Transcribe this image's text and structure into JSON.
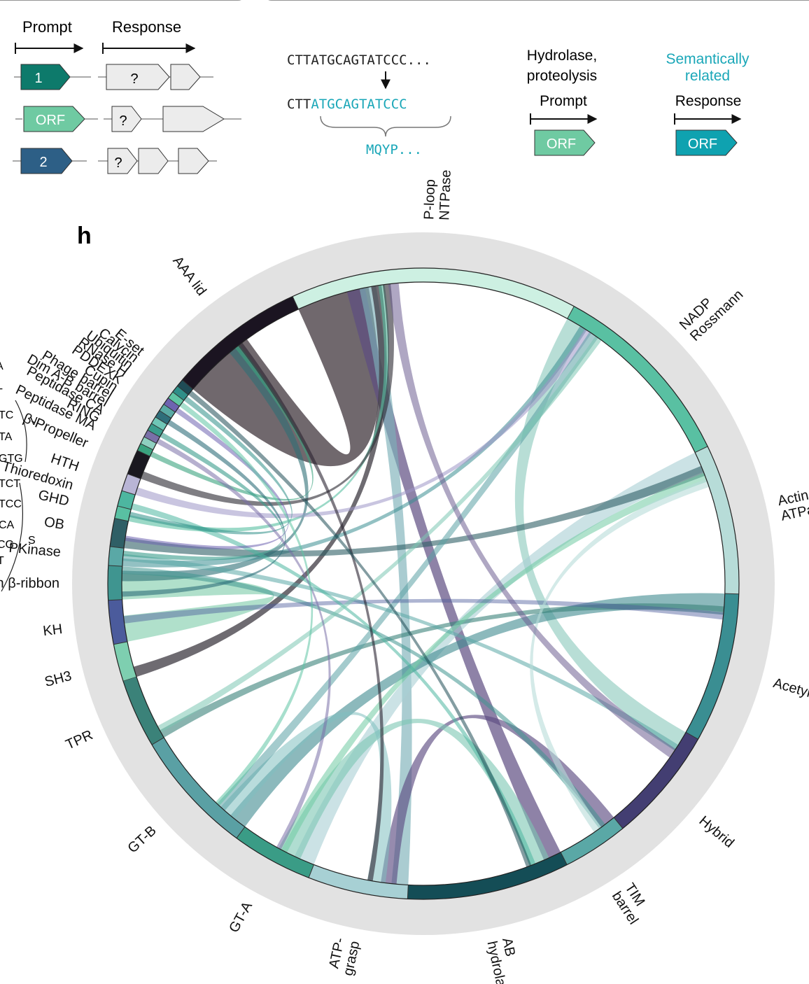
{
  "colors": {
    "teal_dark": "#0d7a6b",
    "mint": "#6fcaa2",
    "navy": "#2d5f86",
    "cyan_text": "#1aa7b8",
    "cyan_box": "#0fa2b0",
    "gene_fill": "#ececec",
    "ring": "#e2e2e2"
  },
  "panel_top_left": {
    "prompt_label": "Prompt",
    "response_label": "Response",
    "rows": [
      {
        "label": "1",
        "fill": "#0d7a6b",
        "text_color": "#ffffff",
        "response": [
          "?",
          "",
          ""
        ]
      },
      {
        "label": "ORF",
        "fill": "#6fcaa2",
        "text_color": "#ffffff",
        "response": [
          "?",
          ""
        ]
      },
      {
        "label": "2",
        "fill": "#2d5f86",
        "text_color": "#ffffff",
        "response": [
          "?",
          "",
          ""
        ]
      }
    ]
  },
  "panel_top_mid": {
    "seq_top": "CTTATGCAGTATCCC...",
    "seq_bottom_black": "CTT",
    "seq_bottom_cyan": "ATGCAGTATCCC",
    "protein": "MQYP..."
  },
  "panel_top_right": {
    "hydrolase_line1": "Hydrolase,",
    "hydrolase_line2": "proteolysis",
    "prompt_label": "Prompt",
    "prompt_orf": "ORF",
    "semantic_line1": "Semantically",
    "semantic_line2": "related",
    "response_label": "Response",
    "response_orf": "ORF"
  },
  "left_fragment": {
    "rows": [
      "A",
      "T",
      "TC",
      "TA",
      "GTG",
      "TCT",
      "TCC",
      "CA",
      "CG",
      "T"
    ],
    "bracket_v": "V",
    "bracket_s": "S"
  },
  "panel_h": {
    "letter": "h",
    "domains": [
      {
        "name": "SH3",
        "color": "#7ecfb0",
        "span": 6.0
      },
      {
        "name": "KH",
        "color": "#4b5b9c",
        "span": 7.0
      },
      {
        "name": "Zn β-ribbon",
        "color": "#3f9590",
        "span": 5.5
      },
      {
        "name": "PKinase",
        "color": "#5aa8a6",
        "span": 3.0
      },
      {
        "name": "OB",
        "color": "#2f5f66",
        "span": 4.5
      },
      {
        "name": "GHD",
        "color": "#59c0a2",
        "span": 2.0
      },
      {
        "name": "Thioredoxin",
        "color": "#4db6a0",
        "span": 2.5
      },
      {
        "name": "HTH",
        "color": "#b9b5d6",
        "span": 2.8
      },
      {
        "name": "β-Propeller",
        "color": "#1a1820",
        "span": 4.0
      },
      {
        "name": "Peptidase MA",
        "color": "#3aa37f",
        "span": 1.2
      },
      {
        "name": "RING",
        "color": "#8fd0c0",
        "span": 1.2
      },
      {
        "name": "Peptidase CA",
        "color": "#7a70a8",
        "span": 1.2
      },
      {
        "name": "Dim A-B barrel",
        "color": "#3a9c8c",
        "span": 1.2
      },
      {
        "name": "Phage barrel",
        "color": "#6fc6b6",
        "span": 1.2
      },
      {
        "name": "Cupin",
        "color": "#2e6e7a",
        "span": 1.2
      },
      {
        "name": "PDDEXK",
        "color": "#59aaa4",
        "span": 1.2
      },
      {
        "name": "RNase H",
        "color": "#6e63b0",
        "span": 1.2
      },
      {
        "name": "Ubiquitin",
        "color": "#5ec5a4",
        "span": 1.2
      },
      {
        "name": "Calycin",
        "color": "#2f8f88",
        "span": 1.2
      },
      {
        "name": "E-set",
        "color": "#1f4c56",
        "span": 1.2
      },
      {
        "name": "AAA lid",
        "color": "#1b1421",
        "span": 22.0
      },
      {
        "name": "P-loop\nNTPase",
        "color": "#cdf0e2",
        "span": 46.0
      },
      {
        "name": "NADP\nRossmann",
        "color": "#59c0a2",
        "span": 31.0
      },
      {
        "name": "Actin\nATPase",
        "color": "#b7dcd8",
        "span": 24.0
      },
      {
        "name": "Acetyltrans",
        "color": "#3a8e92",
        "span": 24.0
      },
      {
        "name": "Hybrid",
        "color": "#433e72",
        "span": 18.5
      },
      {
        "name": "TIM\nbarrel",
        "color": "#5aa8a6",
        "span": 10.5
      },
      {
        "name": "AB\nhydrolase",
        "color": "#144d56",
        "span": 26.0
      },
      {
        "name": "ATP-\ngrasp",
        "color": "#a7d0d4",
        "span": 16.0
      },
      {
        "name": "GT-A",
        "color": "#3a9c86",
        "span": 13.0
      },
      {
        "name": "GT-B",
        "color": "#5aa0a4",
        "span": 20.0
      },
      {
        "name": "TPR",
        "color": "#3b8279",
        "span": 11.0
      }
    ],
    "chords": [
      {
        "a": 20,
        "b": 21,
        "w": 14,
        "color": "#4c4248",
        "op": 0.8
      },
      {
        "a": 1,
        "b": 2,
        "w": 5,
        "color": "#8fd3b5",
        "op": 0.7
      },
      {
        "a": 21,
        "b": 27,
        "w": 3.5,
        "color": "#5e4d82",
        "op": 0.7
      },
      {
        "a": 21,
        "b": 28,
        "w": 3.2,
        "color": "#7cb0b8",
        "op": 0.65
      },
      {
        "a": 22,
        "b": 25,
        "w": 4,
        "color": "#88c8bb",
        "op": 0.6
      },
      {
        "a": 23,
        "b": 29,
        "w": 4,
        "color": "#a9cfd3",
        "op": 0.6
      },
      {
        "a": 24,
        "b": 30,
        "w": 3.5,
        "color": "#3f8a90",
        "op": 0.6
      },
      {
        "a": 26,
        "b": 28,
        "w": 3,
        "color": "#5e4d82",
        "op": 0.65
      },
      {
        "a": 27,
        "b": 29,
        "w": 4,
        "color": "#7bc6b2",
        "op": 0.6
      },
      {
        "a": 28,
        "b": 30,
        "w": 3.5,
        "color": "#7fbfc0",
        "op": 0.55
      },
      {
        "a": 0,
        "b": 21,
        "w": 2,
        "color": "#3d3a42",
        "op": 0.75
      },
      {
        "a": 2,
        "b": 20,
        "w": 2,
        "color": "#2f6f77",
        "op": 0.6
      },
      {
        "a": 3,
        "b": 22,
        "w": 1.5,
        "color": "#3a8e92",
        "op": 0.55
      },
      {
        "a": 4,
        "b": 23,
        "w": 2,
        "color": "#2f5f66",
        "op": 0.6
      },
      {
        "a": 5,
        "b": 21,
        "w": 1.2,
        "color": "#59c0a2",
        "op": 0.6
      },
      {
        "a": 7,
        "b": 22,
        "w": 1.5,
        "color": "#9d96c6",
        "op": 0.55
      },
      {
        "a": 31,
        "b": 24,
        "w": 1.6,
        "color": "#3b8279",
        "op": 0.6
      },
      {
        "a": 30,
        "b": 22,
        "w": 2,
        "color": "#5aa0a4",
        "op": 0.55
      },
      {
        "a": 29,
        "b": 23,
        "w": 1.8,
        "color": "#6fcaa2",
        "op": 0.55
      },
      {
        "a": 2,
        "b": 26,
        "w": 1.4,
        "color": "#3f9590",
        "op": 0.55
      },
      {
        "a": 3,
        "b": 25,
        "w": 1.3,
        "color": "#5aa8a6",
        "op": 0.55
      },
      {
        "a": 1,
        "b": 24,
        "w": 1.4,
        "color": "#4b5b9c",
        "op": 0.45
      },
      {
        "a": 6,
        "b": 27,
        "w": 1.2,
        "color": "#4db6a0",
        "op": 0.55
      },
      {
        "a": 8,
        "b": 21,
        "w": 1.5,
        "color": "#2a2830",
        "op": 0.6
      },
      {
        "a": 9,
        "b": 20,
        "w": 1,
        "color": "#3aa37f",
        "op": 0.6
      },
      {
        "a": 12,
        "b": 3,
        "w": 1,
        "color": "#3a9c8c",
        "op": 0.6
      },
      {
        "a": 14,
        "b": 2,
        "w": 1,
        "color": "#2e6e7a",
        "op": 0.6
      },
      {
        "a": 16,
        "b": 4,
        "w": 1,
        "color": "#6e63b0",
        "op": 0.55
      },
      {
        "a": 18,
        "b": 5,
        "w": 1,
        "color": "#2f8f88",
        "op": 0.55
      },
      {
        "a": 22,
        "b": 31,
        "w": 1.4,
        "color": "#7bc6b2",
        "op": 0.55
      },
      {
        "a": 23,
        "b": 26,
        "w": 1.6,
        "color": "#b7dcd8",
        "op": 0.6
      },
      {
        "a": 25,
        "b": 21,
        "w": 2,
        "color": "#6e5f92",
        "op": 0.55
      },
      {
        "a": 20,
        "b": 28,
        "w": 1,
        "color": "#2a2330",
        "op": 0.6
      },
      {
        "a": 11,
        "b": 29,
        "w": 1,
        "color": "#7a70a8",
        "op": 0.55
      },
      {
        "a": 17,
        "b": 30,
        "w": 1,
        "color": "#5ec5a4",
        "op": 0.55
      },
      {
        "a": 19,
        "b": 27,
        "w": 1,
        "color": "#1f4c56",
        "op": 0.55
      }
    ]
  }
}
